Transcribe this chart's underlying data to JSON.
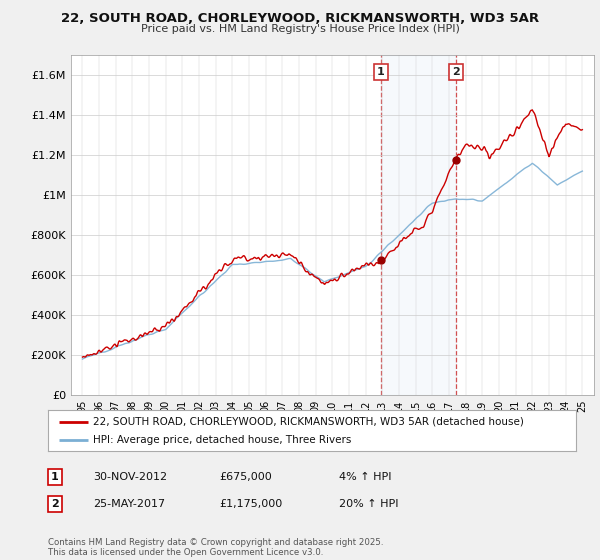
{
  "title_line1": "22, SOUTH ROAD, CHORLEYWOOD, RICKMANSWORTH, WD3 5AR",
  "title_line2": "Price paid vs. HM Land Registry's House Price Index (HPI)",
  "legend_line1": "22, SOUTH ROAD, CHORLEYWOOD, RICKMANSWORTH, WD3 5AR (detached house)",
  "legend_line2": "HPI: Average price, detached house, Three Rivers",
  "annotation1_label": "1",
  "annotation1_date": "30-NOV-2012",
  "annotation1_price": "£675,000",
  "annotation1_hpi": "4% ↑ HPI",
  "annotation1_year": 2012.92,
  "annotation1_value": 675000,
  "annotation2_label": "2",
  "annotation2_date": "25-MAY-2017",
  "annotation2_price": "£1,175,000",
  "annotation2_hpi": "20% ↑ HPI",
  "annotation2_year": 2017.42,
  "annotation2_value": 1175000,
  "footer": "Contains HM Land Registry data © Crown copyright and database right 2025.\nThis data is licensed under the Open Government Licence v3.0.",
  "price_color": "#cc0000",
  "hpi_color": "#7bafd4",
  "background_color": "#f0f0f0",
  "plot_bg_color": "#ffffff",
  "ylim": [
    0,
    1700000
  ],
  "yticks": [
    0,
    200000,
    400000,
    600000,
    800000,
    1000000,
    1200000,
    1400000,
    1600000
  ],
  "ytick_labels": [
    "£0",
    "£200K",
    "£400K",
    "£600K",
    "£800K",
    "£1M",
    "£1.2M",
    "£1.4M",
    "£1.6M"
  ]
}
